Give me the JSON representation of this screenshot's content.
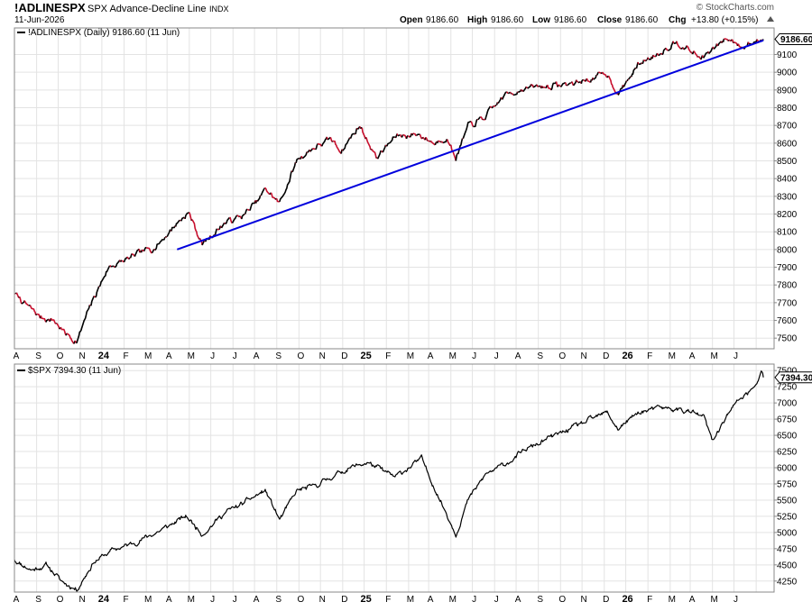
{
  "header": {
    "symbol": "!ADLINESPX",
    "name": "SPX Advance-Decline Line",
    "exchange": "INDX",
    "date": "11-Jun-2026",
    "credit": "© StockCharts.com",
    "quote": {
      "open_label": "Open",
      "open": "9186.60",
      "high_label": "High",
      "high": "9186.60",
      "low_label": "Low",
      "low": "9186.60",
      "close_label": "Close",
      "close": "9186.60",
      "chg_label": "Chg",
      "chg": "+13.80 (+0.15%)"
    }
  },
  "colors": {
    "adline_up": "#000000",
    "adline_down": "#c8102e",
    "trendline": "#0000dd",
    "spx_line": "#000000",
    "grid": "#e3e3e3",
    "frame": "#888888"
  },
  "chart_data": [
    {
      "type": "line",
      "legend": "!ADLINESPX (Daily) 9186.60 (11 Jun)",
      "last_value_label": "9186.60",
      "scale": "linear",
      "ylim": [
        7440,
        9250
      ],
      "yticks": [
        7500,
        7600,
        7700,
        7800,
        7900,
        8000,
        8100,
        8200,
        8300,
        8400,
        8500,
        8600,
        8700,
        8800,
        8900,
        9000,
        9100
      ],
      "x_labels": [
        "A",
        "S",
        "O",
        "N",
        "24",
        "F",
        "M",
        "A",
        "M",
        "J",
        "J",
        "A",
        "S",
        "O",
        "N",
        "D",
        "25",
        "F",
        "M",
        "A",
        "M",
        "J",
        "J",
        "A",
        "S",
        "O",
        "N",
        "D",
        "26",
        "F",
        "M",
        "A",
        "M",
        "J"
      ],
      "grid": true,
      "coloring": "black on up days, red on down days",
      "series": [
        {
          "x": [
            "2023-08-01",
            "2023-08-20",
            "2023-09-05",
            "2023-09-25",
            "2023-10-10",
            "2023-10-27",
            "2023-11-15",
            "2023-12-10",
            "2024-01-10",
            "2024-02-15",
            "2024-03-15",
            "2024-03-31",
            "2024-04-19",
            "2024-05-20",
            "2024-06-15",
            "2024-07-05",
            "2024-07-17",
            "2024-08-05",
            "2024-08-30",
            "2024-09-20",
            "2024-10-15",
            "2024-10-30",
            "2024-11-25",
            "2024-12-18",
            "2025-01-15",
            "2025-02-15",
            "2025-03-10",
            "2025-03-25",
            "2025-04-08",
            "2025-04-25",
            "2025-05-20",
            "2025-06-15",
            "2025-07-10",
            "2025-08-10",
            "2025-09-10",
            "2025-10-10",
            "2025-11-05",
            "2025-11-21",
            "2025-12-20",
            "2026-01-20",
            "2026-02-10",
            "2026-03-15",
            "2026-03-31",
            "2026-04-20",
            "2026-05-15",
            "2026-06-11"
          ],
          "values": [
            7750,
            7680,
            7620,
            7600,
            7530,
            7480,
            7680,
            7900,
            7950,
            8020,
            8150,
            8210,
            8030,
            8150,
            8190,
            8270,
            8340,
            8260,
            8510,
            8570,
            8620,
            8560,
            8700,
            8520,
            8640,
            8650,
            8600,
            8640,
            8520,
            8690,
            8750,
            8870,
            8910,
            8920,
            8930,
            8960,
            8990,
            8880,
            9050,
            9120,
            9180,
            9080,
            9120,
            9190,
            9150,
            9186.6
          ]
        }
      ],
      "trendline": {
        "x": [
          "2024-03-15",
          "2026-06-11"
        ],
        "values": [
          8000,
          9180
        ]
      }
    },
    {
      "type": "line",
      "legend": "$SPX 7394.30 (11 Jun)",
      "last_value_label": "7394.30",
      "scale": "linear",
      "ylim": [
        4080,
        7600
      ],
      "yticks": [
        4250,
        4500,
        4750,
        5000,
        5250,
        5500,
        5750,
        6000,
        6250,
        6500,
        6750,
        7000,
        7250,
        7500
      ],
      "x_labels": [
        "A",
        "S",
        "O",
        "N",
        "24",
        "F",
        "M",
        "A",
        "M",
        "J",
        "J",
        "A",
        "S",
        "O",
        "N",
        "D",
        "25",
        "F",
        "M",
        "A",
        "M",
        "J",
        "J",
        "A",
        "S",
        "O",
        "N",
        "D",
        "26",
        "F",
        "M",
        "A",
        "M",
        "J"
      ],
      "grid": true,
      "series": [
        {
          "x": [
            "2023-08-01",
            "2023-08-25",
            "2023-09-15",
            "2023-10-05",
            "2023-10-27",
            "2023-11-20",
            "2023-12-15",
            "2024-01-15",
            "2024-02-15",
            "2024-03-28",
            "2024-04-19",
            "2024-05-20",
            "2024-06-15",
            "2024-07-16",
            "2024-08-05",
            "2024-08-30",
            "2024-09-20",
            "2024-10-15",
            "2024-11-11",
            "2024-12-06",
            "2025-01-13",
            "2025-02-19",
            "2025-03-13",
            "2025-04-08",
            "2025-04-25",
            "2025-05-20",
            "2025-06-15",
            "2025-07-15",
            "2025-08-15",
            "2025-09-15",
            "2025-10-15",
            "2025-11-05",
            "2025-11-20",
            "2025-12-20",
            "2026-01-20",
            "2026-02-25",
            "2026-03-20",
            "2026-04-01",
            "2026-04-20",
            "2026-05-08",
            "2026-06-01",
            "2026-06-08",
            "2026-06-11"
          ],
          "values": [
            4580,
            4420,
            4500,
            4250,
            4120,
            4550,
            4720,
            4840,
            5000,
            5250,
            4980,
            5300,
            5450,
            5650,
            5200,
            5650,
            5700,
            5850,
            6000,
            6080,
            5850,
            6140,
            5600,
            4980,
            5500,
            5900,
            6050,
            6280,
            6450,
            6600,
            6750,
            6850,
            6600,
            6860,
            6920,
            6880,
            6780,
            6400,
            6800,
            7050,
            7250,
            7500,
            7394.3
          ]
        }
      ]
    }
  ]
}
